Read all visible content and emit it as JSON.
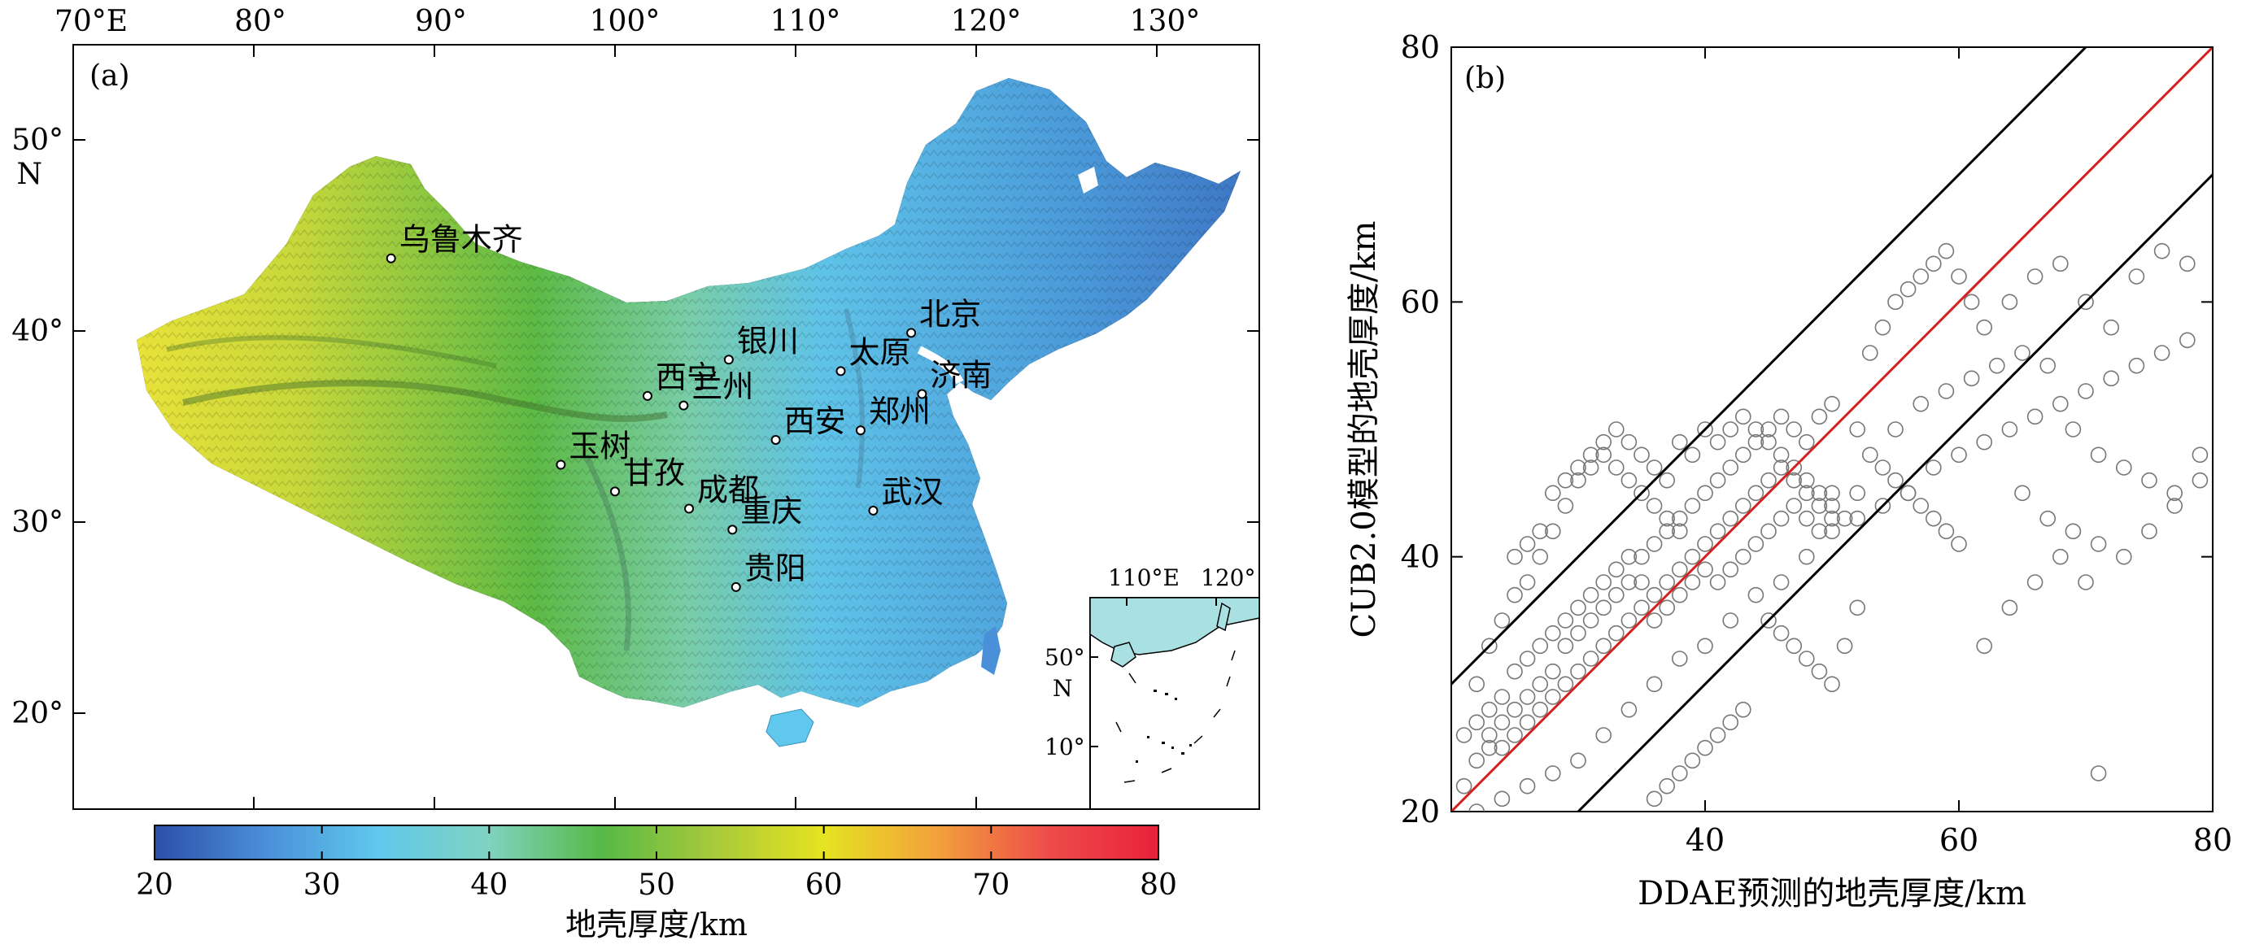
{
  "panel_a": {
    "label": "(a)",
    "lon_ticks": [
      "70°E",
      "80°",
      "90°",
      "100°",
      "110°",
      "120°",
      "130°"
    ],
    "lat_ticks": [
      "20°",
      "30°",
      "40°",
      "50°"
    ],
    "lat_unit": "N",
    "cities": [
      {
        "name": "乌鲁木齐",
        "lon": 87.6,
        "lat": 43.8
      },
      {
        "name": "银川",
        "lon": 106.3,
        "lat": 38.5
      },
      {
        "name": "太原",
        "lon": 112.5,
        "lat": 37.9
      },
      {
        "name": "北京",
        "lon": 116.4,
        "lat": 39.9
      },
      {
        "name": "济南",
        "lon": 117.0,
        "lat": 36.7
      },
      {
        "name": "西宁",
        "lon": 101.8,
        "lat": 36.6
      },
      {
        "name": "兰州",
        "lon": 103.8,
        "lat": 36.1
      },
      {
        "name": "西安",
        "lon": 108.9,
        "lat": 34.3
      },
      {
        "name": "郑州",
        "lon": 113.6,
        "lat": 34.8
      },
      {
        "name": "玉树",
        "lon": 97.0,
        "lat": 33.0
      },
      {
        "name": "甘孜",
        "lon": 100.0,
        "lat": 31.6
      },
      {
        "name": "成都",
        "lon": 104.1,
        "lat": 30.7
      },
      {
        "name": "武汉",
        "lon": 114.3,
        "lat": 30.6
      },
      {
        "name": "重庆",
        "lon": 106.5,
        "lat": 29.6
      },
      {
        "name": "贵阳",
        "lon": 106.7,
        "lat": 26.6
      }
    ],
    "inset": {
      "lon_ticks": [
        "110°E",
        "120°"
      ],
      "lat_ticks": [
        "50°",
        "10°"
      ],
      "lat_unit": "N"
    },
    "colorbar": {
      "label": "地壳厚度/km",
      "ticks": [
        "20",
        "30",
        "40",
        "50",
        "60",
        "70",
        "80"
      ],
      "range": [
        20,
        80
      ],
      "colors": [
        "#2b4fa8",
        "#4a90d9",
        "#5fc8ec",
        "#7fd3c0",
        "#56b948",
        "#a7c93a",
        "#e6e321",
        "#f2a23b",
        "#ee4d4a",
        "#e8213b"
      ]
    }
  },
  "chart_data": {
    "type": "scatter",
    "panel_label": "(b)",
    "xlabel": "DDAE预测的地壳厚度/km",
    "ylabel": "CUB2.0模型的地壳厚度/km",
    "xlim": [
      20,
      80
    ],
    "ylim": [
      20,
      80
    ],
    "x_ticks": [
      "40",
      "60",
      "80"
    ],
    "y_ticks": [
      "20",
      "40",
      "60",
      "80"
    ],
    "reference_lines": [
      {
        "color": "#d42020",
        "points": [
          [
            20,
            20
          ],
          [
            80,
            80
          ]
        ]
      },
      {
        "color": "#000000",
        "points": [
          [
            20,
            30
          ],
          [
            70,
            80
          ]
        ]
      },
      {
        "color": "#000000",
        "points": [
          [
            30,
            20
          ],
          [
            80,
            70
          ]
        ]
      }
    ],
    "marker_color": "#777777",
    "points": [
      [
        21,
        22
      ],
      [
        22,
        24
      ],
      [
        23,
        25
      ],
      [
        24,
        27
      ],
      [
        25,
        28
      ],
      [
        26,
        29
      ],
      [
        27,
        30
      ],
      [
        28,
        31
      ],
      [
        29,
        33
      ],
      [
        30,
        34
      ],
      [
        31,
        35
      ],
      [
        32,
        36
      ],
      [
        33,
        37
      ],
      [
        34,
        38
      ],
      [
        35,
        40
      ],
      [
        36,
        41
      ],
      [
        37,
        42
      ],
      [
        38,
        43
      ],
      [
        39,
        44
      ],
      [
        40,
        45
      ],
      [
        41,
        46
      ],
      [
        42,
        47
      ],
      [
        43,
        48
      ],
      [
        44,
        49
      ],
      [
        45,
        50
      ],
      [
        46,
        51
      ],
      [
        47,
        50
      ],
      [
        48,
        49
      ],
      [
        49,
        51
      ],
      [
        50,
        52
      ],
      [
        22,
        30
      ],
      [
        23,
        33
      ],
      [
        24,
        35
      ],
      [
        25,
        37
      ],
      [
        26,
        38
      ],
      [
        27,
        40
      ],
      [
        28,
        42
      ],
      [
        29,
        44
      ],
      [
        30,
        46
      ],
      [
        31,
        47
      ],
      [
        32,
        48
      ],
      [
        33,
        47
      ],
      [
        34,
        46
      ],
      [
        35,
        45
      ],
      [
        36,
        44
      ],
      [
        37,
        43
      ],
      [
        38,
        42
      ],
      [
        22,
        20
      ],
      [
        24,
        21
      ],
      [
        26,
        22
      ],
      [
        28,
        23
      ],
      [
        30,
        24
      ],
      [
        32,
        26
      ],
      [
        34,
        28
      ],
      [
        36,
        30
      ],
      [
        38,
        32
      ],
      [
        40,
        33
      ],
      [
        42,
        35
      ],
      [
        44,
        37
      ],
      [
        46,
        38
      ],
      [
        48,
        40
      ],
      [
        50,
        42
      ],
      [
        52,
        43
      ],
      [
        54,
        44
      ],
      [
        56,
        45
      ],
      [
        58,
        47
      ],
      [
        60,
        48
      ],
      [
        62,
        49
      ],
      [
        64,
        50
      ],
      [
        66,
        51
      ],
      [
        68,
        52
      ],
      [
        70,
        53
      ],
      [
        72,
        54
      ],
      [
        74,
        55
      ],
      [
        76,
        56
      ],
      [
        78,
        57
      ],
      [
        55,
        50
      ],
      [
        57,
        52
      ],
      [
        59,
        53
      ],
      [
        61,
        54
      ],
      [
        63,
        55
      ],
      [
        65,
        56
      ],
      [
        67,
        55
      ],
      [
        69,
        50
      ],
      [
        71,
        48
      ],
      [
        73,
        47
      ],
      [
        75,
        46
      ],
      [
        77,
        45
      ],
      [
        79,
        48
      ],
      [
        62,
        58
      ],
      [
        64,
        60
      ],
      [
        66,
        62
      ],
      [
        68,
        63
      ],
      [
        70,
        60
      ],
      [
        72,
        58
      ],
      [
        74,
        62
      ],
      [
        76,
        64
      ],
      [
        78,
        63
      ],
      [
        65,
        45
      ],
      [
        67,
        43
      ],
      [
        69,
        42
      ],
      [
        71,
        41
      ],
      [
        73,
        40
      ],
      [
        75,
        42
      ],
      [
        77,
        44
      ],
      [
        79,
        46
      ],
      [
        53,
        56
      ],
      [
        54,
        58
      ],
      [
        55,
        60
      ],
      [
        56,
        61
      ],
      [
        57,
        62
      ],
      [
        58,
        63
      ],
      [
        59,
        64
      ],
      [
        60,
        62
      ],
      [
        61,
        60
      ],
      [
        52,
        50
      ],
      [
        53,
        48
      ],
      [
        54,
        47
      ],
      [
        55,
        46
      ],
      [
        56,
        45
      ],
      [
        57,
        44
      ],
      [
        58,
        43
      ],
      [
        59,
        42
      ],
      [
        60,
        41
      ],
      [
        45,
        35
      ],
      [
        46,
        34
      ],
      [
        47,
        33
      ],
      [
        48,
        32
      ],
      [
        49,
        31
      ],
      [
        50,
        30
      ],
      [
        51,
        33
      ],
      [
        52,
        36
      ],
      [
        43,
        28
      ],
      [
        42,
        27
      ],
      [
        41,
        26
      ],
      [
        40,
        25
      ],
      [
        39,
        24
      ],
      [
        38,
        23
      ],
      [
        37,
        22
      ],
      [
        36,
        21
      ],
      [
        62,
        33
      ],
      [
        64,
        36
      ],
      [
        66,
        38
      ],
      [
        68,
        40
      ],
      [
        70,
        38
      ],
      [
        71,
        23
      ],
      [
        25,
        40
      ],
      [
        26,
        41
      ],
      [
        27,
        42
      ],
      [
        28,
        45
      ],
      [
        29,
        46
      ],
      [
        30,
        47
      ],
      [
        31,
        48
      ],
      [
        32,
        49
      ],
      [
        33,
        50
      ],
      [
        34,
        49
      ],
      [
        35,
        48
      ],
      [
        36,
        47
      ],
      [
        37,
        46
      ],
      [
        38,
        49
      ],
      [
        39,
        48
      ],
      [
        40,
        50
      ],
      [
        41,
        49
      ],
      [
        42,
        50
      ],
      [
        43,
        51
      ],
      [
        44,
        50
      ],
      [
        45,
        49
      ],
      [
        46,
        48
      ],
      [
        47,
        47
      ],
      [
        48,
        46
      ],
      [
        49,
        45
      ],
      [
        50,
        44
      ],
      [
        51,
        43
      ],
      [
        52,
        45
      ],
      [
        23,
        28
      ],
      [
        24,
        29
      ],
      [
        25,
        31
      ],
      [
        26,
        32
      ],
      [
        27,
        33
      ],
      [
        28,
        34
      ],
      [
        29,
        35
      ],
      [
        30,
        36
      ],
      [
        31,
        37
      ],
      [
        32,
        38
      ],
      [
        33,
        39
      ],
      [
        34,
        40
      ],
      [
        35,
        38
      ],
      [
        36,
        37
      ],
      [
        37,
        38
      ],
      [
        38,
        39
      ],
      [
        39,
        40
      ],
      [
        40,
        41
      ],
      [
        41,
        42
      ],
      [
        42,
        43
      ],
      [
        43,
        44
      ],
      [
        44,
        45
      ],
      [
        45,
        46
      ],
      [
        46,
        47
      ],
      [
        47,
        46
      ],
      [
        48,
        45
      ],
      [
        49,
        44
      ],
      [
        50,
        45
      ],
      [
        21,
        26
      ],
      [
        22,
        27
      ],
      [
        23,
        26
      ],
      [
        24,
        25
      ],
      [
        25,
        26
      ],
      [
        26,
        27
      ],
      [
        27,
        28
      ],
      [
        28,
        29
      ],
      [
        29,
        30
      ],
      [
        30,
        31
      ],
      [
        31,
        32
      ],
      [
        32,
        33
      ],
      [
        33,
        34
      ],
      [
        34,
        35
      ],
      [
        35,
        36
      ],
      [
        36,
        35
      ],
      [
        37,
        36
      ],
      [
        38,
        37
      ],
      [
        39,
        38
      ],
      [
        40,
        39
      ],
      [
        41,
        38
      ],
      [
        42,
        39
      ],
      [
        43,
        40
      ],
      [
        44,
        41
      ],
      [
        45,
        42
      ],
      [
        46,
        43
      ],
      [
        47,
        44
      ],
      [
        48,
        43
      ],
      [
        49,
        42
      ],
      [
        50,
        43
      ]
    ]
  }
}
